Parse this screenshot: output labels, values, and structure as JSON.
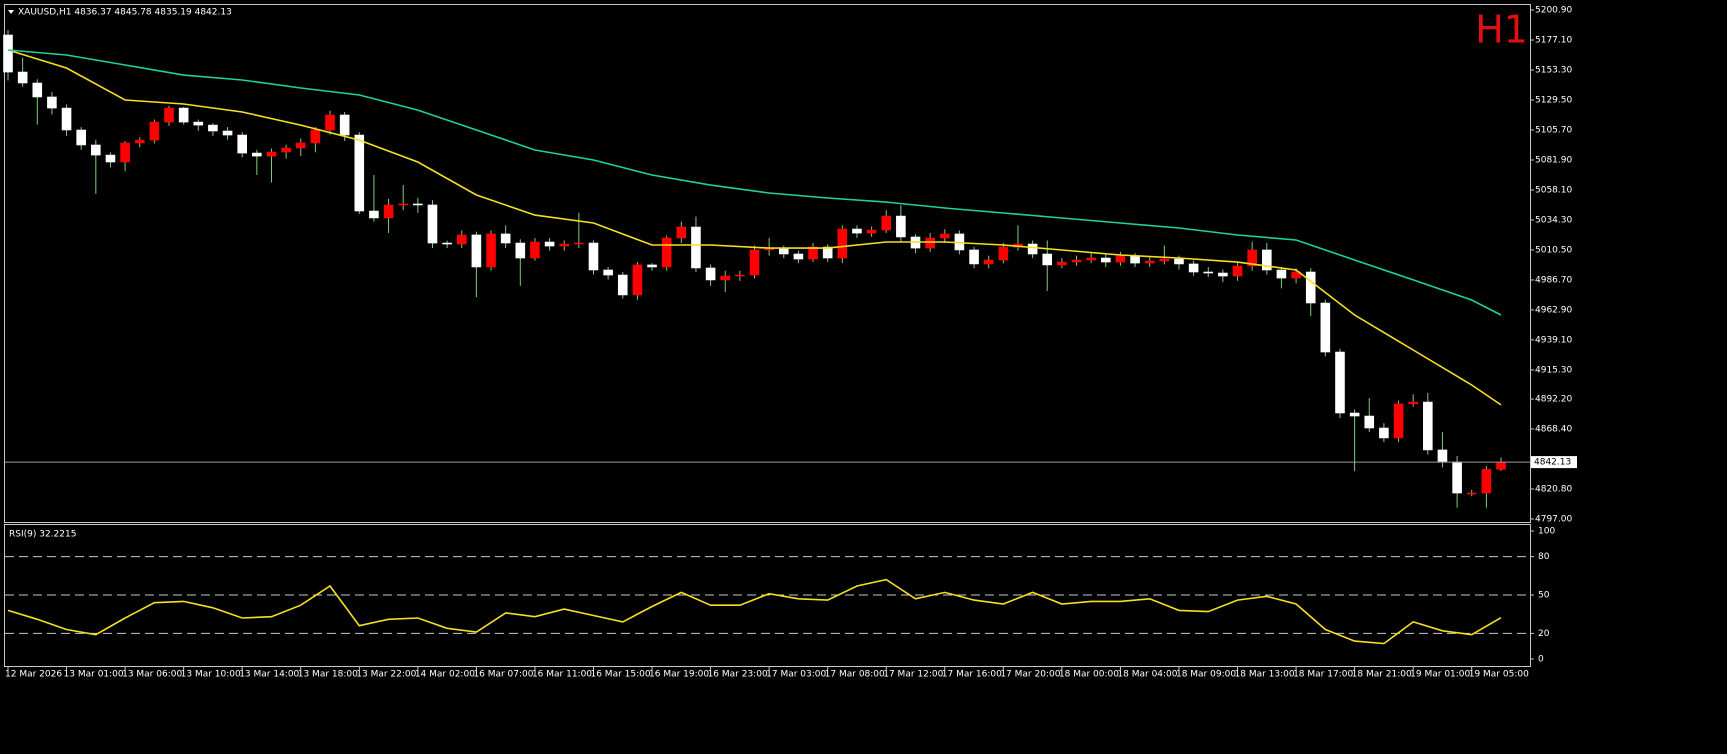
{
  "chart_data": {
    "type": "candlestick",
    "header": "XAUUSD,H1 4836.37 4845.78 4835.19 4842.13",
    "timeframe_badge": "H1",
    "up_color": "#ff0000",
    "down_color": "#ffffff",
    "wick_color": "#7ccf7c",
    "badge_color": "#e01010",
    "price_line_color": "#9a9a9a",
    "categories": [
      "12 Mar 2026",
      null,
      null,
      null,
      "13 Mar 01:00",
      null,
      null,
      null,
      "13 Mar 06:00",
      null,
      null,
      null,
      "13 Mar 10:00",
      null,
      null,
      null,
      "13 Mar 14:00",
      null,
      null,
      null,
      "13 Mar 18:00",
      null,
      null,
      null,
      "13 Mar 22:00",
      null,
      null,
      null,
      "14 Mar 02:00",
      null,
      null,
      null,
      "16 Mar 07:00",
      null,
      null,
      null,
      "16 Mar 11:00",
      null,
      null,
      null,
      "16 Mar 15:00",
      null,
      null,
      null,
      "16 Mar 19:00",
      null,
      null,
      null,
      "16 Mar 23:00",
      null,
      null,
      null,
      "17 Mar 03:00",
      null,
      null,
      null,
      "17 Mar 08:00",
      null,
      null,
      null,
      "17 Mar 12:00",
      null,
      null,
      null,
      "17 Mar 16:00",
      null,
      null,
      null,
      "17 Mar 20:00",
      null,
      null,
      null,
      "18 Mar 00:00",
      null,
      null,
      null,
      "18 Mar 04:00",
      null,
      null,
      null,
      "18 Mar 09:00",
      null,
      null,
      null,
      "18 Mar 13:00",
      null,
      null,
      null,
      "18 Mar 17:00",
      null,
      null,
      null,
      "18 Mar 21:00",
      null,
      null,
      null,
      "19 Mar 01:00",
      null,
      null,
      null,
      "19 Mar 05:00",
      null,
      null
    ],
    "open": [
      5181.1,
      5151.7,
      5143.0,
      5131.9,
      5123.1,
      5105.7,
      5093.8,
      5085.8,
      5080.3,
      5095.4,
      5097.7,
      5112.0,
      5123.1,
      5112.0,
      5109.6,
      5104.9,
      5101.7,
      5087.4,
      5085.0,
      5088.2,
      5091.4,
      5095.4,
      5105.7,
      5117.6,
      5101.7,
      5041.4,
      5035.9,
      5046.2,
      5047.0,
      5046.2,
      5016.0,
      5015.2,
      5022.4,
      4997.0,
      5023.2,
      5016.0,
      5004.1,
      5016.8,
      5013.6,
      5015.2,
      5016.0,
      4994.6,
      4990.6,
      4974.8,
      4998.6,
      4997.0,
      5020.0,
      5028.7,
      4996.2,
      4986.7,
      4989.8,
      4990.6,
      5010.5,
      5011.3,
      5007.3,
      5003.3,
      5012.8,
      5004.1,
      5027.1,
      5023.9,
      5026.3,
      5037.4,
      5020.8,
      5012.0,
      5020.0,
      5023.2,
      5010.5,
      4999.4,
      5002.5,
      5012.8,
      5015.2,
      5007.3,
      4998.6,
      5000.9,
      5002.5,
      5004.1,
      5000.9,
      5005.7,
      5000.1,
      5001.7,
      5003.3,
      4999.4,
      4993.0,
      4992.2,
      4989.8,
      4997.8,
      5010.5,
      4994.6,
      4988.2,
      4993.0,
      4968.4,
      4929.5,
      4881.1,
      4878.7,
      4869.2,
      4861.3,
      4888.3,
      4889.8,
      4851.8,
      4842.2,
      4817.6,
      4817.6,
      4836.37
    ],
    "high": [
      5185,
      5163,
      5146,
      5136,
      5126,
      5108,
      5098,
      5088,
      5097,
      5100,
      5114,
      5125,
      5124,
      5114,
      5111,
      5108,
      5104,
      5090,
      5091,
      5094,
      5099,
      5108,
      5121,
      5120,
      5104,
      5070,
      5051,
      5062,
      5052,
      5050,
      5018,
      5026,
      5025,
      5026,
      5030,
      5019,
      5020,
      5020,
      5018,
      5040,
      5018,
      4997,
      4993,
      5001,
      5000,
      5022,
      5033,
      5037,
      4999,
      4994,
      4994,
      5014,
      5020,
      5014,
      5010,
      5016,
      5015,
      5030,
      5030,
      5029,
      5042,
      5046,
      5023,
      5024,
      5027,
      5026,
      5013,
      5006,
      5016,
      5030,
      5018,
      5018,
      5004,
      5006,
      5008,
      5007,
      5009,
      5008,
      5005,
      5014,
      5006,
      5002,
      4997,
      4995,
      5001,
      5017,
      5016,
      4997,
      4996,
      4996,
      4971,
      4932,
      4884,
      4893,
      4873,
      4891,
      4896,
      4897,
      4866,
      4847,
      4820,
      4839,
      4845.78
    ],
    "low": [
      5145,
      5140,
      5110,
      5118,
      5101,
      5090,
      5055,
      5076,
      5073,
      5092,
      5095,
      5109,
      5110,
      5105,
      5101,
      5098,
      5084,
      5070,
      5064,
      5083,
      5085,
      5088,
      5102,
      5097,
      5039,
      5033,
      5024,
      5042,
      5040,
      5012,
      5012,
      5012,
      4973,
      4994,
      5012,
      4982,
      5002,
      5010,
      5010,
      5012,
      4991,
      4987,
      4972,
      4971,
      4994,
      4994,
      5016,
      4993,
      4982,
      4977,
      4986,
      4988,
      5006,
      5004,
      5000,
      5001,
      5001,
      5000,
      5020,
      5021,
      5024,
      5017,
      5008,
      5009,
      5016,
      5007,
      4996,
      4996,
      5000,
      5010,
      5004,
      4978,
      4996,
      4998,
      5000,
      4997,
      4998,
      4997,
      4997,
      4999,
      4995,
      4990,
      4989,
      4985,
      4986,
      4994,
      4991,
      4980,
      4984,
      4958,
      4926,
      4877,
      4835,
      4866,
      4858,
      4858,
      4886,
      4848,
      4838,
      4806,
      4815,
      4806,
      4835.19
    ],
    "close": [
      5151.7,
      5143.0,
      5131.9,
      5123.1,
      5105.7,
      5093.8,
      5085.8,
      5080.3,
      5095.4,
      5097.7,
      5112.0,
      5123.1,
      5112.0,
      5109.6,
      5104.9,
      5101.7,
      5087.4,
      5085.0,
      5088.2,
      5091.4,
      5095.4,
      5105.7,
      5117.6,
      5101.7,
      5041.4,
      5035.9,
      5046.2,
      5047.0,
      5046.2,
      5016.0,
      5015.2,
      5022.4,
      4997.0,
      5023.2,
      5016.0,
      5004.1,
      5016.8,
      5013.6,
      5015.2,
      5016.0,
      4994.6,
      4990.6,
      4974.8,
      4998.6,
      4997.0,
      5020.0,
      5028.7,
      4996.2,
      4986.7,
      4989.8,
      4990.6,
      5010.5,
      5011.3,
      5007.3,
      5003.3,
      5012.8,
      5004.1,
      5027.1,
      5023.9,
      5026.3,
      5037.4,
      5020.8,
      5012.0,
      5020.0,
      5023.2,
      5010.5,
      4999.4,
      5002.5,
      5012.8,
      5015.2,
      5007.3,
      4998.6,
      5000.9,
      5002.5,
      5004.1,
      5000.9,
      5005.7,
      5000.1,
      5001.7,
      5003.3,
      4999.4,
      4993.0,
      4992.2,
      4989.8,
      4997.8,
      5010.5,
      4994.6,
      4988.2,
      4993.0,
      4968.4,
      4929.5,
      4881.1,
      4878.7,
      4869.2,
      4861.3,
      4888.3,
      4889.8,
      4851.8,
      4842.2,
      4817.6,
      4817.6,
      4836.4,
      4842.13
    ],
    "moving_averages": [
      {
        "color": "#f5e020",
        "x": [
          0,
          4,
          8,
          12,
          16,
          20,
          24,
          28,
          32,
          36,
          40,
          44,
          48,
          52,
          56,
          60,
          64,
          68,
          72,
          76,
          80,
          84,
          88,
          92,
          96,
          100,
          102
        ],
        "values": [
          5169.2,
          5154.9,
          5129.5,
          5126.3,
          5120.0,
          5109.6,
          5097.7,
          5080.3,
          5054.1,
          5038.2,
          5031.9,
          5014.4,
          5014.4,
          5012.0,
          5012.0,
          5016.8,
          5016.8,
          5014.4,
          5010.5,
          5006.5,
          5004.1,
          5000.9,
          4994.6,
          4958.9,
          4931.1,
          4903.3,
          4887.5
        ]
      },
      {
        "color": "#20d0a0",
        "x": [
          0,
          4,
          8,
          12,
          16,
          20,
          24,
          28,
          32,
          36,
          40,
          44,
          48,
          52,
          56,
          60,
          64,
          68,
          72,
          76,
          80,
          84,
          88,
          92,
          96,
          100,
          102
        ],
        "values": [
          5169.2,
          5165.2,
          5157.3,
          5149.3,
          5145.4,
          5139.0,
          5133.5,
          5121.5,
          5105.7,
          5089.8,
          5081.9,
          5070.0,
          5062.0,
          5055.7,
          5051.7,
          5048.5,
          5043.8,
          5039.8,
          5035.9,
          5031.9,
          5027.9,
          5022.4,
          5018.4,
          5002.5,
          4986.7,
          4970.8,
          4958.9
        ]
      }
    ],
    "ylim": [
      4795.4,
      5204.9
    ],
    "yticks": [
      {
        "value": 5200.9,
        "label": "5200.90"
      },
      {
        "value": 5177.1,
        "label": "5177.10"
      },
      {
        "value": 5153.3,
        "label": "5153.30"
      },
      {
        "value": 5129.5,
        "label": "5129.50"
      },
      {
        "value": 5105.7,
        "label": "5105.70"
      },
      {
        "value": 5081.9,
        "label": "5081.90"
      },
      {
        "value": 5058.1,
        "label": "5058.10"
      },
      {
        "value": 5034.3,
        "label": "5034.30"
      },
      {
        "value": 5010.5,
        "label": "5010.50"
      },
      {
        "value": 4986.7,
        "label": "4986.70"
      },
      {
        "value": 4962.9,
        "label": "4962.90"
      },
      {
        "value": 4939.1,
        "label": "4939.10"
      },
      {
        "value": 4915.3,
        "label": "4915.30"
      },
      {
        "value": 4892.2,
        "label": "4892.20"
      },
      {
        "value": 4868.4,
        "label": "4868.40"
      },
      {
        "value": 4820.8,
        "label": "4820.80"
      },
      {
        "value": 4797,
        "label": "4797.00"
      }
    ],
    "rsi": {
      "title": "RSI(9) 32.2215",
      "color": "#f5e020",
      "x": [
        0,
        2,
        4,
        6,
        8,
        10,
        12,
        14,
        16,
        18,
        20,
        22,
        24,
        26,
        28,
        30,
        32,
        34,
        36,
        38,
        40,
        42,
        44,
        46,
        48,
        50,
        52,
        54,
        56,
        58,
        60,
        62,
        64,
        66,
        68,
        70,
        72,
        74,
        76,
        78,
        80,
        82,
        84,
        86,
        88,
        90,
        92,
        94,
        96,
        98,
        100,
        102
      ],
      "values": [
        38,
        31,
        23,
        19,
        32,
        44,
        45,
        40,
        32,
        33,
        42,
        57,
        26,
        31,
        32,
        24,
        21,
        36,
        33,
        39,
        34,
        29,
        41,
        52,
        42,
        42,
        51,
        47,
        46,
        57,
        62,
        47,
        52,
        46,
        43,
        52,
        43,
        45,
        45,
        47,
        38,
        37,
        46,
        49,
        43,
        23,
        14,
        12,
        29,
        22,
        19,
        32.2215
      ],
      "ylim": [
        -5.5,
        105.5
      ],
      "yticks": [
        0,
        20,
        50,
        80,
        100
      ],
      "levels": [
        20,
        50,
        80
      ]
    }
  }
}
